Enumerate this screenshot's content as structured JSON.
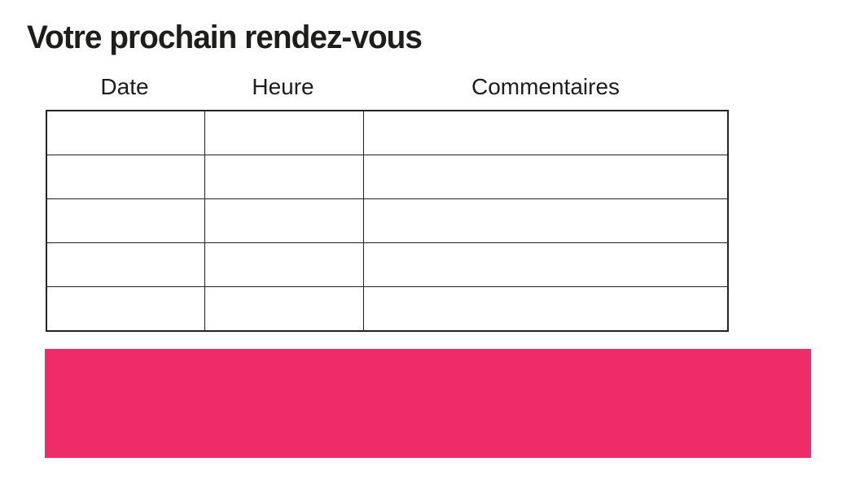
{
  "page": {
    "title": "Votre prochain rendez-vous"
  },
  "table": {
    "columns": [
      {
        "label": "Date"
      },
      {
        "label": "Heure"
      },
      {
        "label": "Commentaires"
      }
    ],
    "rows": [
      [
        "",
        "",
        ""
      ],
      [
        "",
        "",
        ""
      ],
      [
        "",
        "",
        ""
      ],
      [
        "",
        "",
        ""
      ],
      [
        "",
        "",
        ""
      ]
    ]
  },
  "colors": {
    "accent_pink": "#ED2C68",
    "ink": "#1D1D1B",
    "table_border": "#222222"
  }
}
